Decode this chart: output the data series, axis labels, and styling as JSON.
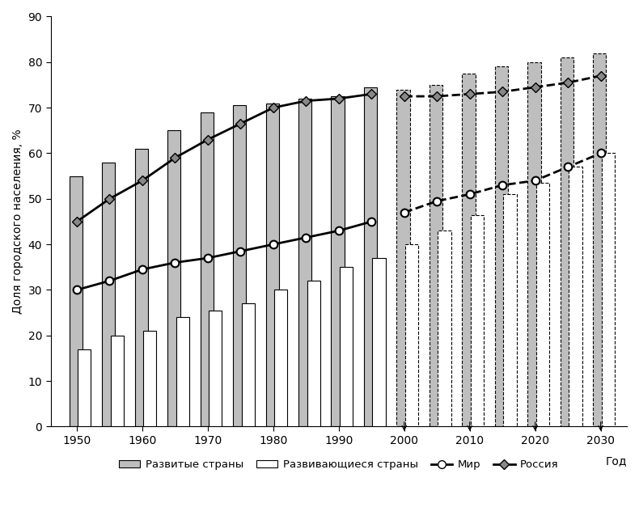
{
  "years": [
    1950,
    1955,
    1960,
    1965,
    1970,
    1975,
    1980,
    1985,
    1990,
    1995,
    2000,
    2005,
    2010,
    2015,
    2020,
    2025,
    2030
  ],
  "developed": [
    55,
    58,
    61,
    65,
    69,
    70.5,
    71,
    72,
    72.5,
    74.5,
    74,
    75,
    77.5,
    79,
    80,
    81,
    82
  ],
  "developing": [
    17,
    20,
    21,
    24,
    25.5,
    27,
    30,
    32,
    35,
    37,
    40,
    43,
    46.5,
    51,
    53.5,
    57,
    60
  ],
  "cutoff_year": 1997,
  "world_years": [
    1950,
    1955,
    1960,
    1965,
    1970,
    1975,
    1980,
    1985,
    1990,
    1995,
    2000,
    2005,
    2010,
    2015,
    2020,
    2025,
    2030
  ],
  "world_values": [
    30,
    32,
    34.5,
    36,
    37,
    38.5,
    40,
    41.5,
    43,
    45,
    47,
    49.5,
    51,
    53,
    54,
    57,
    60
  ],
  "russia_years": [
    1950,
    1955,
    1960,
    1965,
    1970,
    1975,
    1980,
    1985,
    1990,
    1995,
    2000,
    2005,
    2010,
    2015,
    2020,
    2025,
    2030
  ],
  "russia_values": [
    45,
    50,
    54,
    59,
    63,
    66.5,
    70,
    71.5,
    72,
    73,
    72.5,
    72.5,
    73,
    73.5,
    74.5,
    75.5,
    77
  ],
  "ylabel": "Доля городского населения, %",
  "xlabel": "Год",
  "ylim": [
    0,
    90
  ],
  "yticks": [
    0,
    10,
    20,
    30,
    40,
    50,
    60,
    70,
    80,
    90
  ],
  "xticks": [
    1950,
    1960,
    1970,
    1980,
    1990,
    2000,
    2010,
    2020,
    2030
  ],
  "legend_developed": "Развитые страны",
  "legend_developing": "Развивающиеся страны",
  "legend_world": "Мир",
  "legend_russia": "Россия",
  "single_bar_width": 2.0,
  "bar_gap": 0.3,
  "developed_color": "#bebebe",
  "developing_color": "#ffffff",
  "background_color": "#ffffff"
}
